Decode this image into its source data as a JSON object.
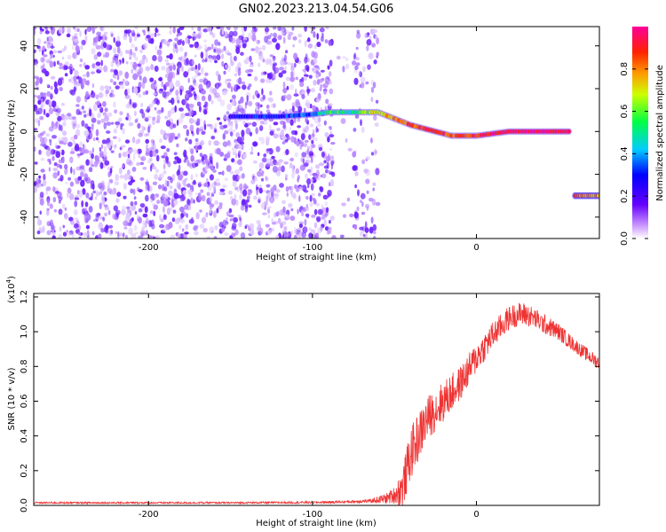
{
  "title": "GN02.2023.213.04.54.G06",
  "colors": {
    "snr_line": "#ee3333",
    "spectrogram_scatter": "#8a2be2",
    "axes": "#000000"
  },
  "chart_data": [
    {
      "type": "heatmap",
      "ylabel": "Frequency (Hz)",
      "xlabel": "Height of straight line (km)",
      "xlim": [
        -270,
        75
      ],
      "ylim": [
        -50,
        49
      ],
      "x_ticks": [
        -200,
        -100,
        0
      ],
      "x_tick_labels": [
        "-200",
        "-100",
        "0"
      ],
      "y_ticks": [
        40,
        20,
        0,
        -20,
        -40
      ],
      "y_tick_labels": [
        "40",
        "20",
        "0",
        "-20",
        "-40"
      ],
      "colorbar": {
        "label": "Normalized spectral amplitude",
        "range": [
          0,
          1
        ],
        "ticks": [
          0.0,
          0.2,
          0.4,
          0.6,
          0.8
        ],
        "tick_labels": [
          "0.0",
          "0.2",
          "0.4",
          "0.6",
          "0.8"
        ],
        "colormap": "rainbow (violet-blue-cyan-green-yellow-red-magenta)"
      },
      "noise_region": {
        "x_range": [
          -270,
          -60
        ],
        "frequency_range": [
          -50,
          49
        ]
      },
      "ridge": [
        {
          "x": -150,
          "f": 7,
          "amp": 0.25
        },
        {
          "x": -120,
          "f": 7,
          "amp": 0.3
        },
        {
          "x": -100,
          "f": 8,
          "amp": 0.35
        },
        {
          "x": -90,
          "f": 9,
          "amp": 0.55
        },
        {
          "x": -75,
          "f": 9,
          "amp": 0.5
        },
        {
          "x": -60,
          "f": 9,
          "amp": 0.7
        },
        {
          "x": -50,
          "f": 6,
          "amp": 0.8
        },
        {
          "x": -40,
          "f": 3,
          "amp": 0.85
        },
        {
          "x": -30,
          "f": 1,
          "amp": 0.9
        },
        {
          "x": -15,
          "f": -2,
          "amp": 0.85
        },
        {
          "x": 0,
          "f": -2,
          "amp": 0.9
        },
        {
          "x": 20,
          "f": 0,
          "amp": 0.95
        },
        {
          "x": 40,
          "f": 0,
          "amp": 0.95
        },
        {
          "x": 58,
          "f": 0,
          "amp": 0.9
        }
      ],
      "secondary_band": {
        "x_range": [
          60,
          75
        ],
        "f": -30,
        "amp": 0.9
      }
    },
    {
      "type": "line",
      "ylabel": "SNR (10 * v/v)",
      "xlabel": "Height of straight line (km)",
      "y_multiplier_label": "(x10",
      "y_multiplier_exponent": "4",
      "y_multiplier_close": ")",
      "xlim": [
        -270,
        75
      ],
      "ylim": [
        0,
        1.22
      ],
      "x_ticks": [
        -200,
        -100,
        0
      ],
      "x_tick_labels": [
        "-200",
        "-100",
        "0"
      ],
      "y_ticks": [
        0.0,
        0.2,
        0.4,
        0.6,
        0.8,
        1.0,
        1.2
      ],
      "y_tick_labels": [
        "0.0",
        "0.2",
        "0.4",
        "0.6",
        "0.8",
        "1.0",
        "1.2"
      ],
      "series": [
        {
          "x": [
            -270,
            -250,
            -200,
            -150,
            -100,
            -80,
            -65,
            -55,
            -50,
            -45,
            -40,
            -35,
            -30,
            -25,
            -20,
            -10,
            0,
            10,
            20,
            25,
            30,
            35,
            40,
            50,
            60,
            70,
            75
          ],
          "values": [
            0.015,
            0.015,
            0.015,
            0.015,
            0.017,
            0.02,
            0.025,
            0.04,
            0.06,
            0.1,
            0.3,
            0.4,
            0.5,
            0.55,
            0.6,
            0.7,
            0.85,
            0.98,
            1.08,
            1.1,
            1.1,
            1.08,
            1.05,
            1.0,
            0.92,
            0.85,
            0.82
          ],
          "noise": [
            0.005,
            0.005,
            0.005,
            0.005,
            0.006,
            0.008,
            0.01,
            0.03,
            0.05,
            0.12,
            0.15,
            0.14,
            0.13,
            0.12,
            0.12,
            0.1,
            0.09,
            0.08,
            0.07,
            0.07,
            0.07,
            0.06,
            0.06,
            0.05,
            0.04,
            0.04,
            0.04
          ]
        }
      ]
    }
  ]
}
